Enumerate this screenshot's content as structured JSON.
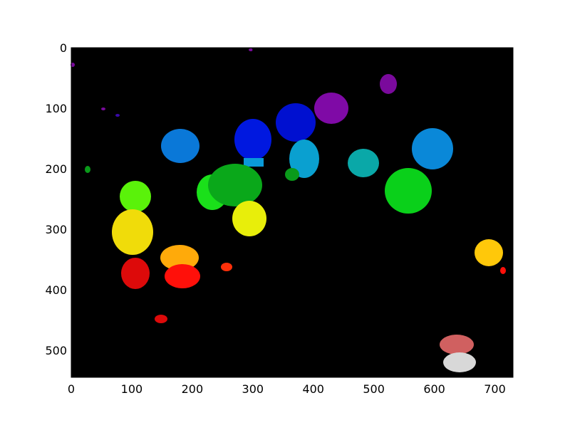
{
  "chart_data": {
    "type": "image",
    "xlim": [
      0,
      730
    ],
    "ylim": [
      545,
      0
    ],
    "xticks": [
      0,
      100,
      200,
      300,
      400,
      500,
      600,
      700
    ],
    "yticks": [
      0,
      100,
      200,
      300,
      400,
      500
    ]
  }
}
